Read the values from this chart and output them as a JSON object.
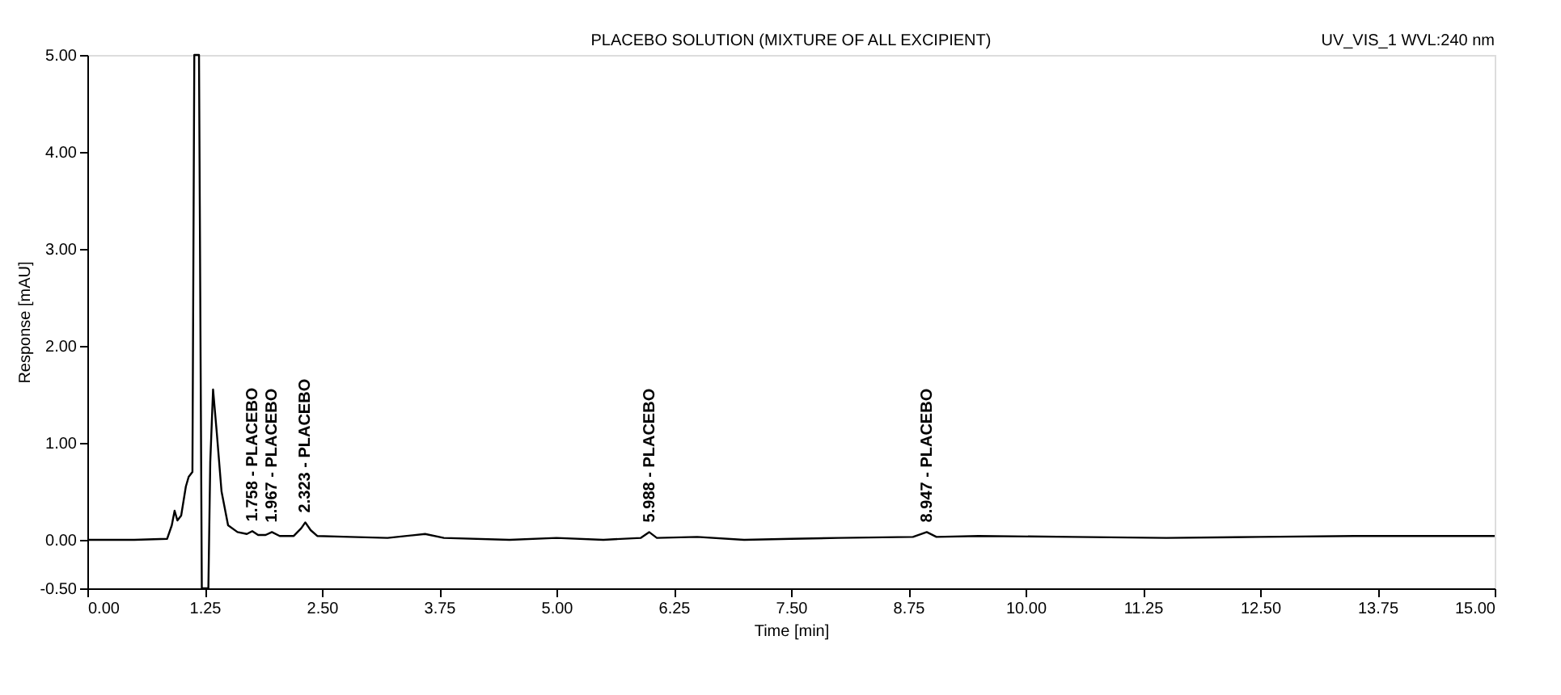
{
  "chart_data": {
    "type": "line",
    "title": "PLACEBO SOLUTION (MIXTURE OF ALL EXCIPIENT)",
    "xlabel": "Time [min]",
    "ylabel": "Response [mAU]",
    "annotations": [
      "UV_VIS_1 WVL:240 nm",
      {
        "text": "1.758 - PLACEBO",
        "x": 1.758,
        "y": 0.09
      },
      {
        "text": "1.967 - PLACEBO",
        "x": 1.967,
        "y": 0.08
      },
      {
        "text": "2.323 - PLACEBO",
        "x": 2.323,
        "y": 0.18
      },
      {
        "text": "5.988 - PLACEBO",
        "x": 5.988,
        "y": 0.08
      },
      {
        "text": "8.947 - PLACEBO",
        "x": 8.947,
        "y": 0.08
      }
    ],
    "series": [
      {
        "color": "#000000",
        "x": [
          0,
          0.5,
          0.85,
          0.9,
          0.93,
          0.96,
          1.0,
          1.05,
          1.08,
          1.12,
          1.14,
          1.19,
          1.22,
          1.29,
          1.31,
          1.34,
          1.38,
          1.43,
          1.5,
          1.6,
          1.7,
          1.758,
          1.82,
          1.9,
          1.967,
          2.05,
          2.2,
          2.28,
          2.323,
          2.38,
          2.45,
          2.8,
          3.2,
          3.6,
          3.8,
          4.5,
          5.0,
          5.5,
          5.9,
          5.988,
          6.07,
          6.5,
          7.0,
          7.5,
          8.0,
          8.8,
          8.947,
          9.05,
          9.5,
          10.5,
          11.5,
          12.5,
          13.5,
          15
        ],
        "values": [
          0.0,
          0.0,
          0.01,
          0.15,
          0.3,
          0.2,
          0.25,
          0.55,
          0.65,
          0.7,
          5.0,
          5.0,
          -0.5,
          -0.5,
          0.8,
          1.55,
          1.1,
          0.5,
          0.15,
          0.08,
          0.06,
          0.09,
          0.05,
          0.05,
          0.08,
          0.04,
          0.04,
          0.12,
          0.18,
          0.1,
          0.04,
          0.03,
          0.02,
          0.06,
          0.02,
          0.0,
          0.02,
          0.0,
          0.02,
          0.08,
          0.02,
          0.03,
          0.0,
          0.01,
          0.02,
          0.03,
          0.08,
          0.03,
          0.04,
          0.03,
          0.02,
          0.03,
          0.04,
          0.04
        ]
      }
    ],
    "xlim": [
      0,
      15
    ],
    "ylim": [
      -0.5,
      5.0
    ],
    "xticks": [
      {
        "value": 0,
        "label": "0.00"
      },
      {
        "value": 1.25,
        "label": "1.25"
      },
      {
        "value": 2.5,
        "label": "2.50"
      },
      {
        "value": 3.75,
        "label": "3.75"
      },
      {
        "value": 5,
        "label": "5.00"
      },
      {
        "value": 6.25,
        "label": "6.25"
      },
      {
        "value": 7.5,
        "label": "7.50"
      },
      {
        "value": 8.75,
        "label": "8.75"
      },
      {
        "value": 10,
        "label": "10.00"
      },
      {
        "value": 11.25,
        "label": "11.25"
      },
      {
        "value": 12.5,
        "label": "12.50"
      },
      {
        "value": 13.75,
        "label": "13.75"
      },
      {
        "value": 15,
        "label": "15.00"
      }
    ],
    "yticks": [
      {
        "value": -0.5,
        "label": "-0.50"
      },
      {
        "value": 0,
        "label": "0.00"
      },
      {
        "value": 1,
        "label": "1.00"
      },
      {
        "value": 2,
        "label": "2.00"
      },
      {
        "value": 3,
        "label": "3.00"
      },
      {
        "value": 4,
        "label": "4.00"
      },
      {
        "value": 5,
        "label": "5.00"
      }
    ],
    "grid": false,
    "marker": "none",
    "line_style": "solid"
  }
}
